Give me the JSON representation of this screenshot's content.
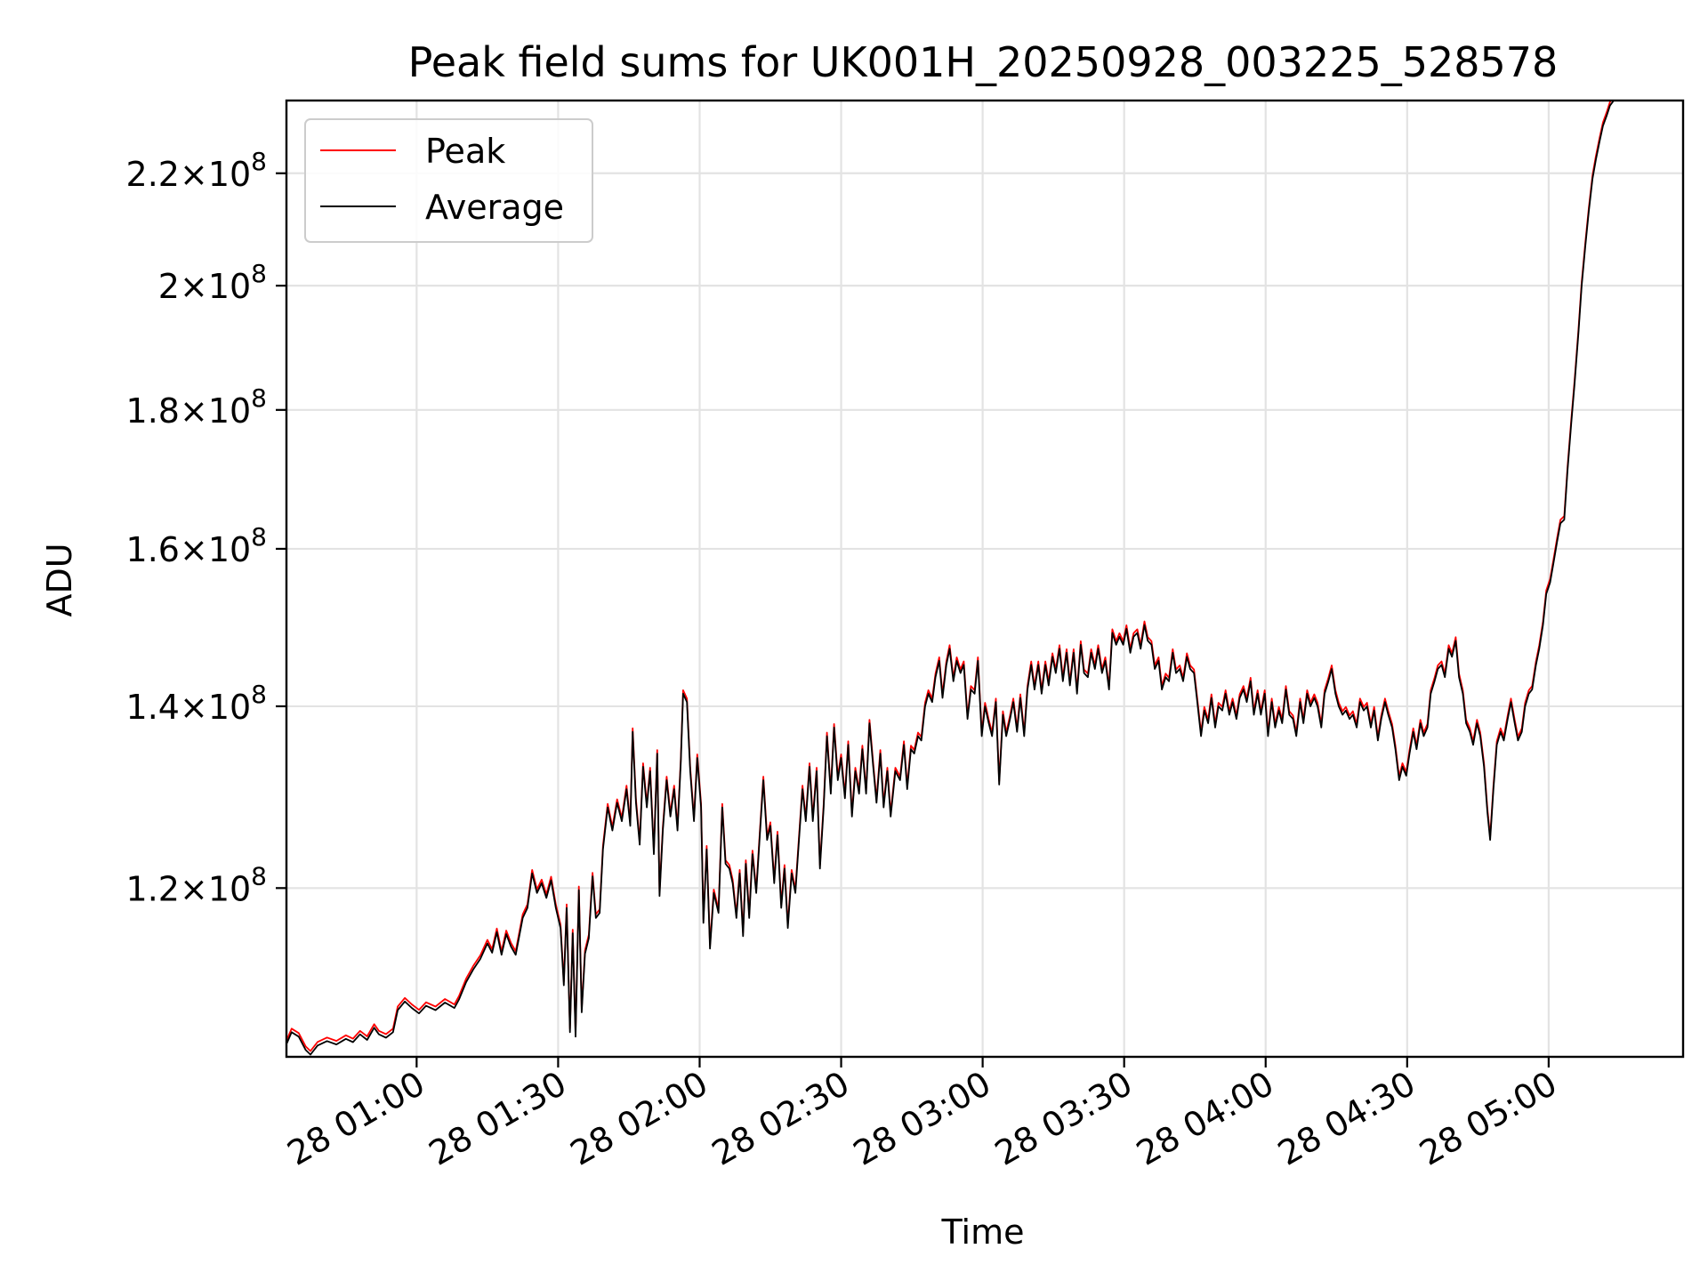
{
  "chart_data": {
    "type": "line",
    "title": "Peak field sums for UK001H_20250928_003225_528578",
    "xlabel": "Time",
    "ylabel": "ADU",
    "yscale": "log",
    "xlim": [
      32.4,
      328.5
    ],
    "ylim": [
      104000000,
      234000000
    ],
    "grid": true,
    "legend_position": "top-left",
    "x_unit": "minutes after 28 00:00",
    "xticks": [
      {
        "value": 60,
        "label": "28 01:00"
      },
      {
        "value": 90,
        "label": "28 01:30"
      },
      {
        "value": 120,
        "label": "28 02:00"
      },
      {
        "value": 150,
        "label": "28 02:30"
      },
      {
        "value": 180,
        "label": "28 03:00"
      },
      {
        "value": 210,
        "label": "28 03:30"
      },
      {
        "value": 240,
        "label": "28 04:00"
      },
      {
        "value": 270,
        "label": "28 04:30"
      },
      {
        "value": 300,
        "label": "28 05:00"
      }
    ],
    "yticks": [
      {
        "value": 120000000,
        "mantissa": "1.2",
        "base": "10",
        "exp": "8"
      },
      {
        "value": 140000000,
        "mantissa": "1.4",
        "base": "10",
        "exp": "8"
      },
      {
        "value": 160000000,
        "mantissa": "1.6",
        "base": "10",
        "exp": "8"
      },
      {
        "value": 180000000,
        "mantissa": "1.8",
        "base": "10",
        "exp": "8"
      },
      {
        "value": 200000000,
        "mantissa": "2",
        "base": "10",
        "exp": "8"
      },
      {
        "value": 220000000,
        "mantissa": "2.2",
        "base": "10",
        "exp": "8"
      }
    ],
    "series": [
      {
        "name": "Peak",
        "color": "#ff0000",
        "offset_ratio": 1.003
      },
      {
        "name": "Average",
        "color": "#000000",
        "offset_ratio": 1.0
      }
    ],
    "average_points": [
      [
        32.5,
        105200000
      ],
      [
        33.5,
        106200000
      ],
      [
        35,
        105800000
      ],
      [
        36.5,
        104600000
      ],
      [
        37.5,
        104200000
      ],
      [
        39,
        105000000
      ],
      [
        41,
        105400000
      ],
      [
        43,
        105100000
      ],
      [
        45,
        105600000
      ],
      [
        46.5,
        105300000
      ],
      [
        48,
        106000000
      ],
      [
        49.5,
        105500000
      ],
      [
        51,
        106600000
      ],
      [
        52,
        106000000
      ],
      [
        53.5,
        105700000
      ],
      [
        55,
        106200000
      ],
      [
        56,
        108200000
      ],
      [
        57.5,
        109000000
      ],
      [
        59,
        108400000
      ],
      [
        60.5,
        107900000
      ],
      [
        62,
        108600000
      ],
      [
        64,
        108200000
      ],
      [
        66,
        108900000
      ],
      [
        68,
        108400000
      ],
      [
        69,
        109200000
      ],
      [
        70.5,
        110800000
      ],
      [
        72,
        112000000
      ],
      [
        73.5,
        113000000
      ],
      [
        75,
        114500000
      ],
      [
        76,
        113600000
      ],
      [
        77,
        115600000
      ],
      [
        78,
        113400000
      ],
      [
        79,
        115400000
      ],
      [
        80,
        114200000
      ],
      [
        81,
        113400000
      ],
      [
        82.5,
        117000000
      ],
      [
        83.5,
        118000000
      ],
      [
        84.5,
        121500000
      ],
      [
        85.5,
        119500000
      ],
      [
        86.5,
        120500000
      ],
      [
        87.5,
        119000000
      ],
      [
        88.5,
        120800000
      ],
      [
        89.5,
        118000000
      ],
      [
        90.5,
        116000000
      ],
      [
        91.2,
        110500000
      ],
      [
        91.8,
        118000000
      ],
      [
        92.5,
        106200000
      ],
      [
        93.1,
        115500000
      ],
      [
        93.7,
        105800000
      ],
      [
        94.4,
        119800000
      ],
      [
        95,
        108000000
      ],
      [
        95.7,
        113500000
      ],
      [
        96.5,
        115000000
      ],
      [
        97.3,
        121200000
      ],
      [
        98,
        117000000
      ],
      [
        98.8,
        117500000
      ],
      [
        99.5,
        124000000
      ],
      [
        100.5,
        128500000
      ],
      [
        101.5,
        126000000
      ],
      [
        102.5,
        129000000
      ],
      [
        103.5,
        127000000
      ],
      [
        104.5,
        130500000
      ],
      [
        105.3,
        126500000
      ],
      [
        105.8,
        137000000
      ],
      [
        106.5,
        129000000
      ],
      [
        107.3,
        124500000
      ],
      [
        108,
        133000000
      ],
      [
        108.8,
        128500000
      ],
      [
        109.5,
        132500000
      ],
      [
        110.3,
        123500000
      ],
      [
        111,
        134500000
      ],
      [
        111.5,
        119200000
      ],
      [
        112.2,
        126000000
      ],
      [
        113,
        131500000
      ],
      [
        113.8,
        127500000
      ],
      [
        114.6,
        130500000
      ],
      [
        115.3,
        126000000
      ],
      [
        116,
        133500000
      ],
      [
        116.5,
        141500000
      ],
      [
        117.3,
        140500000
      ],
      [
        118,
        132500000
      ],
      [
        118.8,
        127000000
      ],
      [
        119.5,
        134000000
      ],
      [
        120.3,
        128500000
      ],
      [
        120.8,
        116500000
      ],
      [
        121.5,
        124000000
      ],
      [
        122.2,
        114000000
      ],
      [
        123,
        119500000
      ],
      [
        124,
        117500000
      ],
      [
        124.8,
        128500000
      ],
      [
        125.5,
        122500000
      ],
      [
        126.3,
        122000000
      ],
      [
        127,
        120500000
      ],
      [
        127.8,
        117000000
      ],
      [
        128.5,
        121500000
      ],
      [
        129.2,
        115200000
      ],
      [
        129.8,
        122500000
      ],
      [
        130.5,
        117000000
      ],
      [
        131.2,
        123500000
      ],
      [
        132,
        119500000
      ],
      [
        132.7,
        125000000
      ],
      [
        133.5,
        131500000
      ],
      [
        134.3,
        125000000
      ],
      [
        135,
        126500000
      ],
      [
        135.8,
        120500000
      ],
      [
        136.5,
        125500000
      ],
      [
        137.3,
        118000000
      ],
      [
        138,
        122000000
      ],
      [
        138.7,
        116000000
      ],
      [
        139.5,
        121500000
      ],
      [
        140.3,
        119500000
      ],
      [
        141,
        124500000
      ],
      [
        141.8,
        130500000
      ],
      [
        142.5,
        127000000
      ],
      [
        143.3,
        133000000
      ],
      [
        144,
        127000000
      ],
      [
        144.8,
        132500000
      ],
      [
        145.5,
        122000000
      ],
      [
        146.3,
        128500000
      ],
      [
        147,
        136500000
      ],
      [
        147.8,
        130000000
      ],
      [
        148.5,
        137500000
      ],
      [
        149.3,
        131500000
      ],
      [
        150,
        134000000
      ],
      [
        150.8,
        129500000
      ],
      [
        151.5,
        135500000
      ],
      [
        152.3,
        127500000
      ],
      [
        153,
        132500000
      ],
      [
        153.8,
        130000000
      ],
      [
        154.5,
        135000000
      ],
      [
        155.3,
        130000000
      ],
      [
        156,
        138000000
      ],
      [
        156.8,
        133000000
      ],
      [
        157.5,
        129000000
      ],
      [
        158.3,
        134500000
      ],
      [
        159,
        128500000
      ],
      [
        159.8,
        132500000
      ],
      [
        160.5,
        127500000
      ],
      [
        161.5,
        132500000
      ],
      [
        162.5,
        131500000
      ],
      [
        163.3,
        135500000
      ],
      [
        164,
        130500000
      ],
      [
        164.8,
        135000000
      ],
      [
        165.5,
        134500000
      ],
      [
        166.3,
        136500000
      ],
      [
        167,
        136000000
      ],
      [
        167.8,
        140000000
      ],
      [
        168.5,
        141500000
      ],
      [
        169.3,
        140500000
      ],
      [
        170,
        143500000
      ],
      [
        170.8,
        145500000
      ],
      [
        171.5,
        141000000
      ],
      [
        172.3,
        145000000
      ],
      [
        173,
        147000000
      ],
      [
        173.8,
        143000000
      ],
      [
        174.5,
        145500000
      ],
      [
        175.3,
        144000000
      ],
      [
        176,
        145000000
      ],
      [
        176.8,
        138500000
      ],
      [
        177.5,
        142000000
      ],
      [
        178.3,
        141500000
      ],
      [
        179,
        145500000
      ],
      [
        179.8,
        136500000
      ],
      [
        180.5,
        140000000
      ],
      [
        181.3,
        138000000
      ],
      [
        182,
        136500000
      ],
      [
        182.8,
        140500000
      ],
      [
        183.5,
        131000000
      ],
      [
        184.3,
        139000000
      ],
      [
        185,
        136500000
      ],
      [
        185.8,
        138500000
      ],
      [
        186.5,
        140500000
      ],
      [
        187.3,
        137000000
      ],
      [
        188,
        141000000
      ],
      [
        188.8,
        136500000
      ],
      [
        189.5,
        142000000
      ],
      [
        190.3,
        145000000
      ],
      [
        191,
        142000000
      ],
      [
        191.8,
        145000000
      ],
      [
        192.5,
        141500000
      ],
      [
        193.3,
        145000000
      ],
      [
        194,
        142500000
      ],
      [
        194.8,
        146000000
      ],
      [
        195.5,
        144000000
      ],
      [
        196.3,
        147000000
      ],
      [
        197,
        143000000
      ],
      [
        197.8,
        146500000
      ],
      [
        198.5,
        142500000
      ],
      [
        199.3,
        146500000
      ],
      [
        200,
        141500000
      ],
      [
        200.8,
        147500000
      ],
      [
        201.5,
        144000000
      ],
      [
        202.3,
        143500000
      ],
      [
        203,
        146500000
      ],
      [
        203.8,
        144500000
      ],
      [
        204.5,
        147000000
      ],
      [
        205.3,
        144000000
      ],
      [
        206,
        145500000
      ],
      [
        206.8,
        142000000
      ],
      [
        207.5,
        149000000
      ],
      [
        208.3,
        147500000
      ],
      [
        209,
        148500000
      ],
      [
        209.8,
        147500000
      ],
      [
        210.5,
        149500000
      ],
      [
        211.3,
        146500000
      ],
      [
        212,
        148500000
      ],
      [
        212.8,
        149000000
      ],
      [
        213.5,
        147000000
      ],
      [
        214.3,
        150000000
      ],
      [
        215,
        148000000
      ],
      [
        215.8,
        147500000
      ],
      [
        216.5,
        144500000
      ],
      [
        217.3,
        145500000
      ],
      [
        218,
        142000000
      ],
      [
        218.8,
        143500000
      ],
      [
        219.5,
        143000000
      ],
      [
        220.3,
        146500000
      ],
      [
        221,
        144000000
      ],
      [
        221.8,
        144500000
      ],
      [
        222.5,
        143000000
      ],
      [
        223.3,
        146000000
      ],
      [
        224,
        144500000
      ],
      [
        224.8,
        144000000
      ],
      [
        225.5,
        140500000
      ],
      [
        226.3,
        136500000
      ],
      [
        227,
        139500000
      ],
      [
        227.8,
        138000000
      ],
      [
        228.5,
        141000000
      ],
      [
        229.3,
        137500000
      ],
      [
        230,
        140000000
      ],
      [
        230.8,
        139500000
      ],
      [
        231.5,
        141500000
      ],
      [
        232.3,
        139000000
      ],
      [
        233,
        140500000
      ],
      [
        233.8,
        138500000
      ],
      [
        234.5,
        141000000
      ],
      [
        235.3,
        142000000
      ],
      [
        236,
        140500000
      ],
      [
        236.8,
        143000000
      ],
      [
        237.5,
        139000000
      ],
      [
        238.3,
        141500000
      ],
      [
        239,
        139000000
      ],
      [
        239.8,
        141500000
      ],
      [
        240.5,
        136500000
      ],
      [
        241.3,
        140500000
      ],
      [
        242,
        137500000
      ],
      [
        242.8,
        139500000
      ],
      [
        243.5,
        138000000
      ],
      [
        244.3,
        142000000
      ],
      [
        245,
        139000000
      ],
      [
        245.8,
        138500000
      ],
      [
        246.5,
        136500000
      ],
      [
        247.3,
        140500000
      ],
      [
        248,
        138000000
      ],
      [
        248.8,
        141500000
      ],
      [
        249.5,
        140000000
      ],
      [
        250.3,
        141000000
      ],
      [
        251,
        140000000
      ],
      [
        251.8,
        137500000
      ],
      [
        252.5,
        141500000
      ],
      [
        253.3,
        143000000
      ],
      [
        254,
        144500000
      ],
      [
        254.8,
        141500000
      ],
      [
        255.5,
        140000000
      ],
      [
        256.3,
        139000000
      ],
      [
        257,
        139500000
      ],
      [
        257.8,
        138500000
      ],
      [
        258.5,
        139000000
      ],
      [
        259.3,
        137500000
      ],
      [
        260,
        140500000
      ],
      [
        260.8,
        139500000
      ],
      [
        261.5,
        140000000
      ],
      [
        262.3,
        137500000
      ],
      [
        263,
        139500000
      ],
      [
        263.8,
        136000000
      ],
      [
        264.5,
        138500000
      ],
      [
        265.3,
        140500000
      ],
      [
        266,
        139000000
      ],
      [
        266.8,
        137500000
      ],
      [
        267.5,
        135000000
      ],
      [
        268.3,
        131500000
      ],
      [
        269,
        133000000
      ],
      [
        269.8,
        132000000
      ],
      [
        270.5,
        134500000
      ],
      [
        271.3,
        137000000
      ],
      [
        272,
        135000000
      ],
      [
        272.8,
        138000000
      ],
      [
        273.5,
        136500000
      ],
      [
        274.3,
        137500000
      ],
      [
        275,
        141500000
      ],
      [
        275.8,
        143000000
      ],
      [
        276.5,
        144500000
      ],
      [
        277.3,
        145000000
      ],
      [
        278,
        143500000
      ],
      [
        278.8,
        147000000
      ],
      [
        279.5,
        146000000
      ],
      [
        280.3,
        148000000
      ],
      [
        281,
        143500000
      ],
      [
        281.8,
        141500000
      ],
      [
        282.5,
        138000000
      ],
      [
        283.3,
        137000000
      ],
      [
        284,
        135500000
      ],
      [
        284.8,
        138000000
      ],
      [
        285.5,
        136500000
      ],
      [
        286.3,
        133000000
      ],
      [
        287,
        128000000
      ],
      [
        287.6,
        125000000
      ],
      [
        288.3,
        130500000
      ],
      [
        289,
        135500000
      ],
      [
        289.8,
        137000000
      ],
      [
        290.5,
        136000000
      ],
      [
        291.3,
        138500000
      ],
      [
        292,
        140500000
      ],
      [
        292.8,
        138000000
      ],
      [
        293.5,
        136000000
      ],
      [
        294.3,
        137000000
      ],
      [
        295,
        140000000
      ],
      [
        295.8,
        141500000
      ],
      [
        296.5,
        142000000
      ],
      [
        297.3,
        145000000
      ],
      [
        298,
        147000000
      ],
      [
        298.8,
        150000000
      ],
      [
        299.5,
        154000000
      ],
      [
        300.3,
        155500000
      ],
      [
        301,
        158000000
      ],
      [
        301.8,
        161000000
      ],
      [
        302.5,
        163500000
      ],
      [
        303.3,
        164000000
      ],
      [
        304,
        171000000
      ],
      [
        304.8,
        178000000
      ],
      [
        305.5,
        184000000
      ],
      [
        306.3,
        192000000
      ],
      [
        307,
        200000000
      ],
      [
        307.8,
        207000000
      ],
      [
        308.5,
        213000000
      ],
      [
        309.3,
        219000000
      ],
      [
        310,
        222500000
      ],
      [
        310.8,
        226000000
      ],
      [
        311.5,
        229000000
      ],
      [
        312.3,
        231000000
      ],
      [
        313,
        233000000
      ],
      [
        313.8,
        234000000
      ]
    ],
    "legend": [
      {
        "label": "Peak",
        "color": "#ff0000"
      },
      {
        "label": "Average",
        "color": "#000000"
      }
    ]
  }
}
